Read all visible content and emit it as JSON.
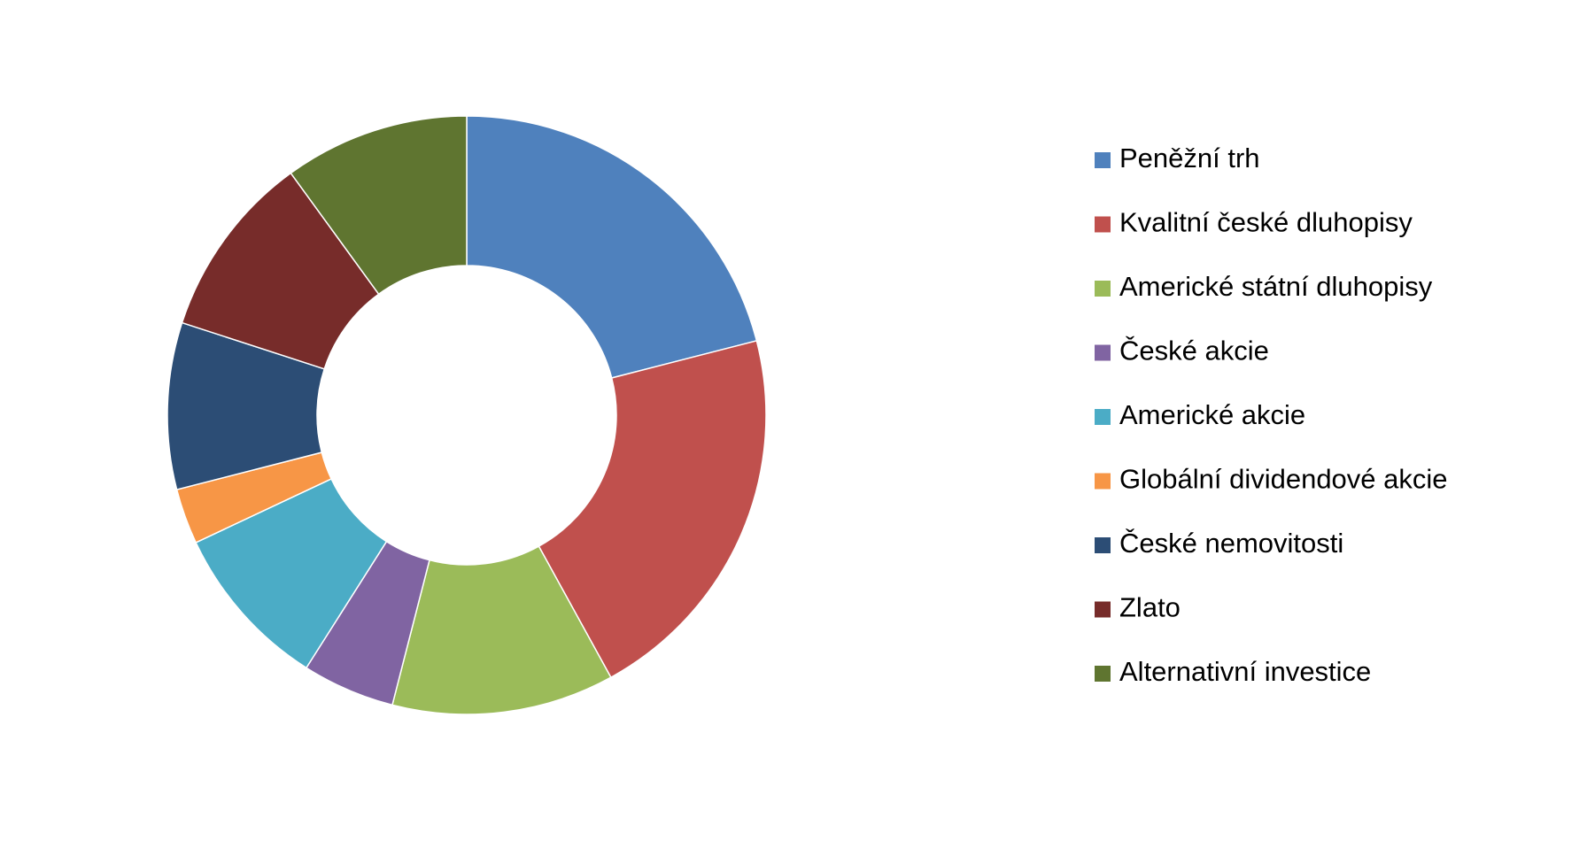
{
  "chart_data": {
    "type": "donut",
    "categories": [
      "Peněžní trh",
      "Kvalitní české dluhopisy",
      "Americké státní dluhopisy",
      "České akcie",
      "Americké akcie",
      "Globální dividendové akcie",
      "České nemovitosti",
      "Zlato",
      "Alternativní investice"
    ],
    "values": [
      21,
      21,
      12,
      5,
      9,
      3,
      9,
      10,
      10
    ],
    "colors": [
      "#4f81bd",
      "#c0504d",
      "#9bbb59",
      "#8064a2",
      "#4bacc6",
      "#f79646",
      "#2c4d75",
      "#772c2a",
      "#5f7530"
    ],
    "legend": "right"
  }
}
